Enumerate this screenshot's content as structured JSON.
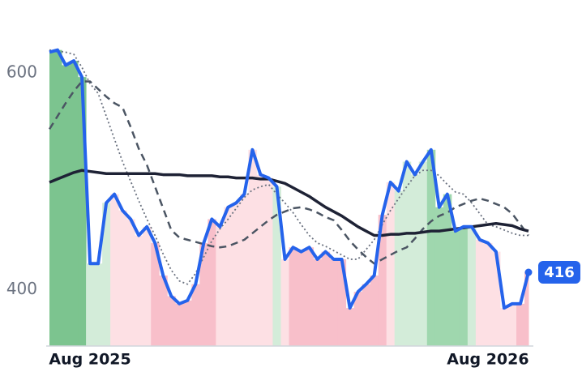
{
  "chart_data": {
    "type": "line",
    "categories": [
      null,
      null,
      null,
      null,
      null,
      "Aug 2025",
      null,
      null,
      null,
      null,
      null,
      null,
      null,
      null,
      null,
      null,
      null,
      null,
      null,
      null,
      null,
      null,
      null,
      null,
      null,
      null,
      null,
      null,
      null,
      null,
      null,
      null,
      null,
      null,
      null,
      null,
      null,
      null,
      null,
      null,
      null,
      null,
      null,
      null,
      null,
      null,
      null,
      null,
      null,
      null,
      null,
      null,
      null,
      null,
      "Aug 2026",
      null,
      null,
      null,
      null,
      null
    ],
    "ylim": [
      348,
      626
    ],
    "yticks": [
      400,
      600
    ],
    "fill_colors": [
      "#7cc48f",
      "#7cc48f",
      "#7cc48f",
      "#7cc48f",
      "#7cc48f",
      "#d3ecd9",
      "#d3ecd9",
      "#d3ecd9",
      "#fde0e4",
      "#fde0e4",
      "#fde0e4",
      "#fde0e4",
      "#fde0e4",
      "#f8bfca",
      "#f8bfca",
      "#f8bfca",
      "#f8bfca",
      "#f8bfca",
      "#f8bfca",
      "#f8bfca",
      "#f8bfca",
      "#fde0e4",
      "#fde0e4",
      "#fde0e4",
      "#fde0e4",
      "#fde0e4",
      "#fde0e4",
      "#fde0e4",
      "#d3ecd9",
      "#fde0e4",
      "#f8bfca",
      "#f8bfca",
      "#f8bfca",
      "#f8bfca",
      "#f8bfca",
      "#f8bfca",
      "#f8bfca",
      "#f8bfca",
      "#f8bfca",
      "#f8bfca",
      "#f8bfca",
      "#f8bfca",
      "#fde0e4",
      "#d3ecd9",
      "#d3ecd9",
      "#d3ecd9",
      "#d3ecd9",
      "#9fd7ae",
      "#9fd7ae",
      "#9fd7ae",
      "#9fd7ae",
      "#9fd7ae",
      "#d3ecd9",
      "#fde0e4",
      "#fde0e4",
      "#fde0e4",
      "#fde0e4",
      "#fde0e4",
      "#f8bfca",
      "#f8bfca"
    ],
    "series": [
      {
        "color": "#2563eb",
        "style": "solid",
        "width": 4,
        "values": [
          619,
          621,
          607,
          611,
          596,
          424,
          424,
          480,
          488,
          473,
          465,
          450,
          458,
          443,
          413,
          394,
          387,
          390,
          405,
          443,
          465,
          458,
          476,
          480,
          488,
          529,
          506,
          503,
          495,
          428,
          439,
          435,
          439,
          428,
          435,
          428,
          428,
          383,
          398,
          405,
          413,
          469,
          499,
          491,
          518,
          506,
          518,
          529,
          476,
          488,
          454,
          458,
          458,
          446,
          443,
          435,
          383,
          387,
          387,
          416
        ]
      },
      {
        "color": "#1e2235",
        "style": "solid",
        "width": 3.5,
        "values": [
          499,
          502,
          505,
          508,
          510,
          509,
          508,
          507,
          507,
          507,
          507,
          507,
          507,
          507,
          506,
          506,
          506,
          505,
          505,
          505,
          505,
          504,
          504,
          503,
          503,
          503,
          502,
          502,
          500,
          498,
          494,
          490,
          486,
          481,
          476,
          472,
          468,
          463,
          458,
          454,
          450,
          450,
          451,
          451,
          452,
          452,
          453,
          454,
          454,
          455,
          456,
          457,
          458,
          459,
          460,
          461,
          460,
          459,
          456,
          454
        ]
      },
      {
        "color": "#4b5563",
        "style": "dashed",
        "width": 2.5,
        "values": [
          548,
          560,
          572,
          583,
          592,
          592,
          585,
          578,
          572,
          568,
          550,
          530,
          515,
          495,
          475,
          455,
          448,
          446,
          444,
          442,
          440,
          439,
          440,
          443,
          446,
          452,
          458,
          464,
          469,
          472,
          475,
          476,
          474,
          471,
          467,
          464,
          455,
          445,
          437,
          430,
          424,
          428,
          432,
          436,
          439,
          447,
          456,
          463,
          468,
          471,
          476,
          479,
          482,
          484,
          482,
          479,
          476,
          470,
          460,
          450
        ]
      },
      {
        "color": "#6b7280",
        "style": "dotted",
        "width": 1.8,
        "values": [
          621,
          620,
          619,
          617,
          605,
          590,
          581,
          560,
          539,
          518,
          500,
          482,
          465,
          450,
          433,
          418,
          408,
          405,
          415,
          430,
          445,
          456,
          465,
          475,
          485,
          492,
          495,
          497,
          488,
          480,
          471,
          460,
          450,
          443,
          440,
          436,
          432,
          428,
          428,
          437,
          446,
          460,
          473,
          484,
          495,
          505,
          510,
          510,
          505,
          497,
          490,
          488,
          480,
          470,
          460,
          458,
          455,
          452,
          450,
          450
        ]
      }
    ]
  }
}
